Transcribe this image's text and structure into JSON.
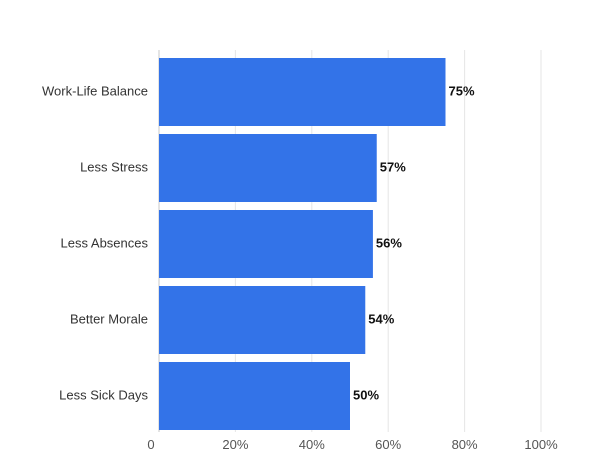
{
  "chart_data": {
    "type": "bar",
    "orientation": "horizontal",
    "title": "",
    "xlabel": "",
    "ylabel": "",
    "categories": [
      "Work-Life Balance",
      "Less Stress",
      "Less Absences",
      "Better Morale",
      "Less Sick Days"
    ],
    "values": [
      75,
      57,
      56,
      54,
      50
    ],
    "value_labels": [
      "75%",
      "57%",
      "56%",
      "54%",
      "50%"
    ],
    "xlim": [
      0,
      100
    ],
    "x_ticks": [
      0,
      20,
      40,
      60,
      80,
      100
    ],
    "x_tick_labels": [
      "0",
      "20%",
      "40%",
      "60%",
      "80%",
      "100%"
    ],
    "grid": true,
    "bar_color": "#3373E8",
    "grid_color": "#E5E5E5",
    "axis_color": "#C8C8C8"
  }
}
